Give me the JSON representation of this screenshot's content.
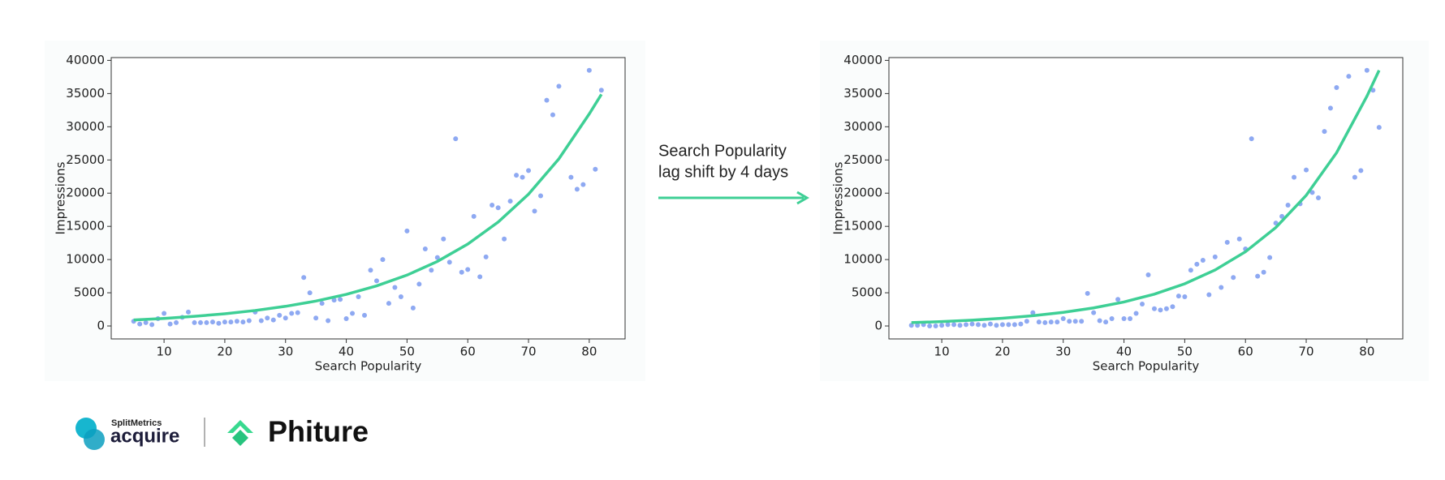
{
  "chart_data": [
    {
      "type": "scatter",
      "xlabel": "Search Popularity",
      "ylabel": "Impressions",
      "xlim": [
        1.3,
        85.9
      ],
      "ylim": [
        -1950,
        40420
      ],
      "xticks": [
        10,
        20,
        30,
        40,
        50,
        60,
        70,
        80
      ],
      "yticks": [
        0,
        5000,
        10000,
        15000,
        20000,
        25000,
        30000,
        35000,
        40000
      ],
      "series": [
        {
          "type": "scatter",
          "color": "#8ea9f2",
          "x": [
            5,
            6,
            7,
            8,
            9,
            10,
            11,
            12,
            13,
            14,
            15,
            16,
            17,
            18,
            19,
            20,
            21,
            22,
            23,
            24,
            25,
            26,
            27,
            28,
            29,
            30,
            31,
            32,
            33,
            34,
            35,
            36,
            37,
            38,
            39,
            40,
            41,
            42,
            43,
            44,
            45,
            46,
            47,
            48,
            49,
            50,
            51,
            52,
            53,
            54,
            55,
            56,
            57,
            58,
            59,
            60,
            61,
            62,
            63,
            64,
            65,
            66,
            67,
            68,
            69,
            70,
            71,
            72,
            73,
            74,
            75,
            77,
            78,
            79,
            80,
            81,
            82
          ],
          "values": [
            700,
            300,
            500,
            200,
            1100,
            1900,
            300,
            500,
            1300,
            2100,
            500,
            500,
            500,
            600,
            400,
            600,
            600,
            700,
            600,
            800,
            2100,
            800,
            1200,
            900,
            1600,
            1200,
            1900,
            2000,
            7300,
            5000,
            1200,
            3400,
            800,
            3900,
            4000,
            1100,
            1900,
            4400,
            1600,
            8400,
            6800,
            10000,
            3400,
            5800,
            4400,
            14300,
            2700,
            6300,
            11600,
            8400,
            10300,
            13100,
            9600,
            28200,
            8100,
            8500,
            16500,
            7400,
            10400,
            18200,
            17800,
            13100,
            18800,
            22700,
            22400,
            23400,
            17300,
            19600,
            34000,
            31800,
            36100,
            22400,
            20600,
            21300,
            38500,
            23600,
            35500
          ]
        },
        {
          "type": "line",
          "color": "#3ecf95",
          "x": [
            5,
            10,
            15,
            20,
            25,
            30,
            35,
            40,
            45,
            50,
            55,
            60,
            65,
            70,
            75,
            80,
            82
          ],
          "values": [
            900,
            1140,
            1450,
            1840,
            2330,
            2960,
            3750,
            4760,
            6040,
            7660,
            9720,
            12330,
            15640,
            19840,
            25170,
            31930,
            34880
          ]
        }
      ]
    },
    {
      "type": "scatter",
      "xlabel": "Search Popularity",
      "ylabel": "Impressions",
      "xlim": [
        1.3,
        85.9
      ],
      "ylim": [
        -1950,
        40420
      ],
      "xticks": [
        10,
        20,
        30,
        40,
        50,
        60,
        70,
        80
      ],
      "yticks": [
        0,
        5000,
        10000,
        15000,
        20000,
        25000,
        30000,
        35000,
        40000
      ],
      "series": [
        {
          "type": "scatter",
          "color": "#8ea9f2",
          "x": [
            5,
            6,
            7,
            8,
            9,
            10,
            11,
            12,
            13,
            14,
            15,
            16,
            17,
            18,
            19,
            20,
            21,
            22,
            23,
            24,
            25,
            26,
            27,
            28,
            29,
            30,
            31,
            32,
            33,
            34,
            35,
            36,
            37,
            38,
            39,
            40,
            41,
            42,
            43,
            44,
            45,
            46,
            47,
            48,
            49,
            50,
            51,
            52,
            53,
            54,
            55,
            56,
            57,
            58,
            59,
            60,
            61,
            62,
            63,
            64,
            65,
            66,
            67,
            68,
            69,
            70,
            71,
            72,
            73,
            74,
            75,
            77,
            78,
            79,
            80,
            81,
            82
          ],
          "values": [
            100,
            100,
            200,
            0,
            0,
            100,
            200,
            200,
            100,
            200,
            300,
            200,
            100,
            300,
            100,
            200,
            200,
            200,
            300,
            700,
            2000,
            600,
            500,
            600,
            600,
            1100,
            700,
            700,
            700,
            4900,
            2000,
            800,
            600,
            1100,
            4000,
            1100,
            1100,
            1900,
            3300,
            7700,
            2600,
            2400,
            2600,
            2900,
            4500,
            4400,
            8400,
            9300,
            9900,
            4700,
            10400,
            5800,
            12600,
            7300,
            13100,
            11600,
            28200,
            7500,
            8100,
            10300,
            15500,
            16500,
            18200,
            22400,
            18400,
            23500,
            20100,
            19300,
            29300,
            32800,
            35900,
            37600,
            22400,
            23400,
            38500,
            35500,
            29900
          ]
        },
        {
          "type": "line",
          "color": "#3ecf95",
          "x": [
            5,
            10,
            15,
            20,
            25,
            30,
            35,
            40,
            45,
            50,
            55,
            60,
            65,
            70,
            75,
            80,
            82
          ],
          "values": [
            500,
            663,
            880,
            1167,
            1548,
            2053,
            2723,
            3612,
            4791,
            6355,
            8430,
            11180,
            14830,
            19670,
            26090,
            34610,
            38500
          ]
        }
      ]
    }
  ],
  "annotation": {
    "lines": [
      "Search Popularity",
      "lag shift by 4 days"
    ]
  },
  "logos": {
    "splitmetrics_top": "SplitMetrics",
    "splitmetrics_bottom": "acquire",
    "phiture": "Phiture"
  }
}
